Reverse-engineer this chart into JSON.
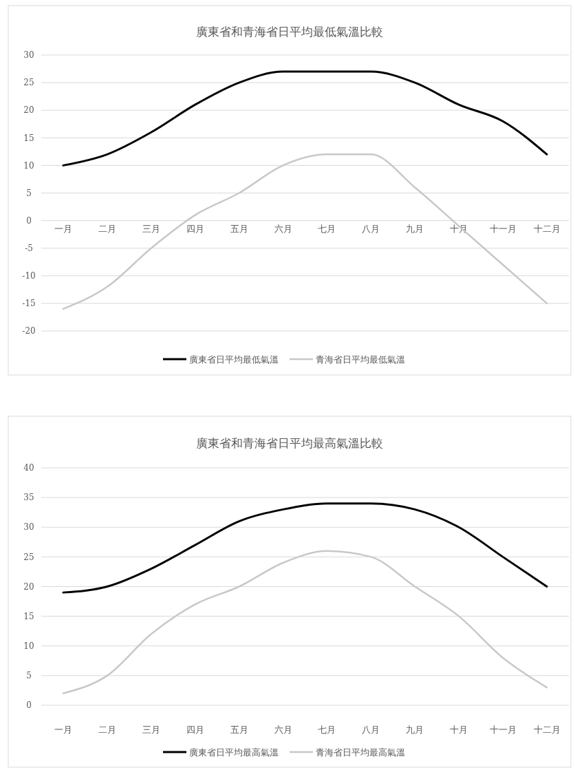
{
  "chart_data": [
    {
      "type": "line",
      "title": "廣東省和青海省日平均最低氣溫比較",
      "categories": [
        "一月",
        "二月",
        "三月",
        "四月",
        "五月",
        "六月",
        "七月",
        "八月",
        "九月",
        "十月",
        "十一月",
        "十二月"
      ],
      "series": [
        {
          "name": "廣東省日平均最低氣溫",
          "color": "#000000",
          "values": [
            10,
            12,
            16,
            21,
            25,
            27,
            27,
            27,
            25,
            21,
            18,
            12
          ]
        },
        {
          "name": "青海省日平均最低氣溫",
          "color": "#c8c8c8",
          "values": [
            -16,
            -12,
            -5,
            1,
            5,
            10,
            12,
            12,
            6,
            -1,
            -8,
            -15
          ]
        }
      ],
      "ylim": [
        -20,
        30
      ],
      "yticks": [
        -20,
        -15,
        -10,
        -5,
        0,
        5,
        10,
        15,
        20,
        25,
        30
      ],
      "grid": "y",
      "legend": "bottom"
    },
    {
      "type": "line",
      "title": "廣東省和青海省日平均最高氣溫比較",
      "categories": [
        "一月",
        "二月",
        "三月",
        "四月",
        "五月",
        "六月",
        "七月",
        "八月",
        "九月",
        "十月",
        "十一月",
        "十二月"
      ],
      "series": [
        {
          "name": "廣東省日平均最高氣溫",
          "color": "#000000",
          "values": [
            19,
            20,
            23,
            27,
            31,
            33,
            34,
            34,
            33,
            30,
            25,
            20
          ]
        },
        {
          "name": "青海省日平均最高氣溫",
          "color": "#c8c8c8",
          "values": [
            2,
            5,
            12,
            17,
            20,
            24,
            26,
            25,
            20,
            15,
            8,
            3
          ]
        }
      ],
      "ylim": [
        0,
        40
      ],
      "yticks": [
        0,
        5,
        10,
        15,
        20,
        25,
        30,
        35,
        40
      ],
      "grid": "y",
      "legend": "bottom"
    }
  ]
}
